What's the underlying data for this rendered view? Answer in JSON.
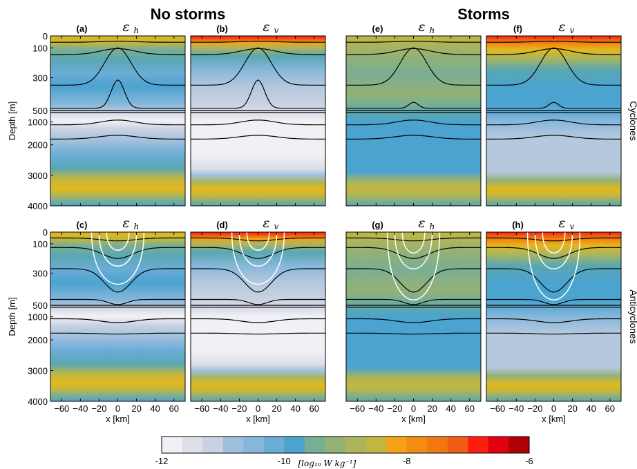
{
  "chart_data": {
    "type": "heatmap",
    "group_titles": [
      "No storms",
      "Storms"
    ],
    "row_labels": [
      "Cyclones",
      "Anticyclones"
    ],
    "panels": [
      {
        "id": "a",
        "letter": "(a)",
        "symbol": "ε",
        "sub": "h",
        "group": "No storms",
        "row": "Cyclones"
      },
      {
        "id": "b",
        "letter": "(b)",
        "symbol": "ε",
        "sub": "v",
        "group": "No storms",
        "row": "Cyclones"
      },
      {
        "id": "e",
        "letter": "(e)",
        "symbol": "ε",
        "sub": "h",
        "group": "Storms",
        "row": "Cyclones"
      },
      {
        "id": "f",
        "letter": "(f)",
        "symbol": "ε",
        "sub": "v",
        "group": "Storms",
        "row": "Cyclones"
      },
      {
        "id": "c",
        "letter": "(c)",
        "symbol": "ε",
        "sub": "h",
        "group": "No storms",
        "row": "Anticyclones"
      },
      {
        "id": "d",
        "letter": "(d)",
        "symbol": "ε",
        "sub": "v",
        "group": "No storms",
        "row": "Anticyclones"
      },
      {
        "id": "g",
        "letter": "(g)",
        "symbol": "ε",
        "sub": "h",
        "group": "Storms",
        "row": "Anticyclones"
      },
      {
        "id": "h",
        "letter": "(h)",
        "symbol": "ε",
        "sub": "v",
        "group": "Storms",
        "row": "Anticyclones"
      }
    ],
    "ylabel": "Depth [m]",
    "xlabel": "x [km]",
    "xlim": [
      -72,
      72
    ],
    "xticks": [
      -60,
      -40,
      -20,
      0,
      20,
      40,
      60
    ],
    "xtick_labels": [
      "−60",
      "−40",
      "−20",
      "0",
      "20",
      "40",
      "60"
    ],
    "upper_depth_ticks": [
      0,
      100,
      300,
      500
    ],
    "lower_depth_ticks": [
      1000,
      2000,
      3000,
      4000
    ],
    "depth_scale_note": "upper 0–500 m and lower 500–4000 m segments",
    "colorbar": {
      "ticks": [
        -12,
        -10,
        -8,
        -6
      ],
      "tick_labels": [
        "-12",
        "-10",
        "-8",
        "-6"
      ],
      "range": [
        -12,
        -6
      ],
      "unit_label": "[log₁₀ W kg⁻¹]",
      "levels": 18,
      "colors": [
        "#f1f1f5",
        "#dddfe9",
        "#c9d2e2",
        "#b5c8de",
        "#9fc0dd",
        "#86b7da",
        "#6aadd6",
        "#4ba3cf",
        "#5aa7b3",
        "#7aae93",
        "#93b176",
        "#acb55b",
        "#c3b63e",
        "#e2b81c",
        "#f3a213",
        "#f28d12",
        "#f07712",
        "#ee5c15",
        "#ff3d14",
        "#ff1e0e",
        "#e1000d",
        "#b00005"
      ]
    }
  }
}
